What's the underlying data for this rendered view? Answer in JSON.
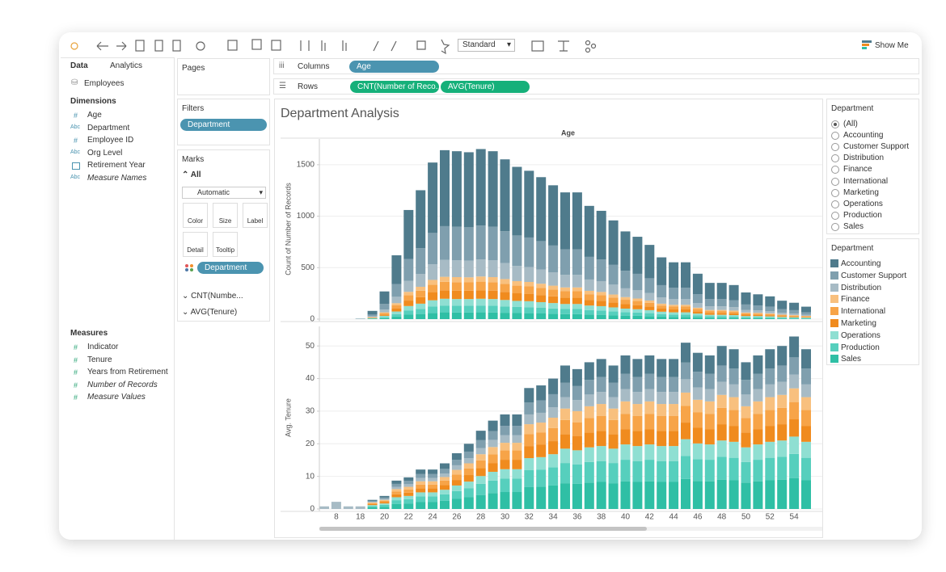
{
  "toolbar": {
    "mark_size": "Standard",
    "show_me": "Show Me"
  },
  "data_pane": {
    "tabs": [
      "Data",
      "Analytics"
    ],
    "data_source": "Employees",
    "dimensions_title": "Dimensions",
    "dimensions": [
      {
        "icon": "#",
        "name": "Age"
      },
      {
        "icon": "Abc",
        "name": "Department"
      },
      {
        "icon": "#",
        "name": "Employee ID"
      },
      {
        "icon": "Abc",
        "name": "Org Level"
      },
      {
        "name": "Retirement Year"
      },
      {
        "icon": "Abc",
        "name": "Measure Names",
        "italic": true
      }
    ],
    "measures_title": "Measures",
    "measures": [
      {
        "icon": "#",
        "name": "Indicator"
      },
      {
        "icon": "#",
        "name": "Tenure"
      },
      {
        "icon": "#",
        "name": "Years from Retirement"
      },
      {
        "icon": "#",
        "name": "Number of Records",
        "italic": true
      },
      {
        "icon": "#",
        "name": "Measure Values",
        "italic": true
      }
    ]
  },
  "shelves": {
    "pages": "Pages",
    "filters": "Filters",
    "filter_pills": [
      "Department"
    ],
    "marks": "Marks",
    "marks_all": "All",
    "mark_type": "Automatic",
    "mark_buttons": [
      "Color",
      "Size",
      "Label",
      "Detail",
      "Tooltip"
    ],
    "color_pill": "Department",
    "mark_measures": [
      "CNT(Numbe...",
      "AVG(Tenure)"
    ],
    "columns": "Columns",
    "column_pills": [
      "Age"
    ],
    "rows": "Rows",
    "row_pills": [
      "CNT(Number of Reco..",
      "AVG(Tenure)"
    ]
  },
  "filter_card": {
    "title": "Department",
    "options": [
      "(All)",
      "Accounting",
      "Customer Support",
      "Distribution",
      "Finance",
      "International",
      "Marketing",
      "Operations",
      "Production",
      "Sales"
    ]
  },
  "chart_data": [
    {
      "type": "bar",
      "stacked": true,
      "title": "Department Analysis",
      "x_label": "Age",
      "y_label": "Count of Number of Records",
      "legend_title": "Department",
      "ylim": [
        0,
        1750
      ],
      "yticks": [
        0,
        500,
        1000,
        1500
      ],
      "grid": true,
      "series": [
        {
          "name": "Accounting",
          "color": "#4f7b8c",
          "values": [
            0,
            0,
            0,
            2,
            36,
            122,
            279,
            477,
            563,
            684,
            738,
            734,
            729,
            743,
            734,
            698,
            666,
            648,
            621,
            585,
            554,
            554,
            495,
            473,
            432,
            383,
            360,
            324,
            270,
            248,
            248,
            198,
            158,
            158,
            149,
            117,
            108,
            99,
            81,
            72,
            54
          ]
        },
        {
          "name": "Customer Support",
          "color": "#7f9fae",
          "values": [
            0,
            0,
            0,
            1,
            16,
            54,
            124,
            212,
            250,
            304,
            328,
            326,
            324,
            330,
            326,
            310,
            296,
            288,
            276,
            260,
            246,
            246,
            220,
            210,
            192,
            170,
            160,
            144,
            120,
            110,
            110,
            88,
            70,
            70,
            66,
            52,
            48,
            44,
            36,
            32,
            24
          ]
        },
        {
          "name": "Distribution",
          "color": "#a7bbc5",
          "values": [
            0,
            0,
            0,
            1,
            8,
            27,
            62,
            106,
            125,
            152,
            164,
            163,
            162,
            165,
            163,
            155,
            148,
            144,
            138,
            130,
            123,
            123,
            110,
            105,
            96,
            85,
            80,
            72,
            60,
            55,
            55,
            44,
            35,
            35,
            33,
            26,
            24,
            22,
            18,
            16,
            12
          ]
        },
        {
          "name": "Finance",
          "color": "#f8c07e",
          "values": [
            0,
            0,
            0,
            0,
            2,
            8,
            19,
            32,
            38,
            46,
            49,
            49,
            49,
            50,
            49,
            47,
            44,
            43,
            41,
            39,
            37,
            37,
            33,
            32,
            29,
            26,
            24,
            22,
            18,
            17,
            17,
            13,
            11,
            11,
            10,
            8,
            7,
            7,
            5,
            5,
            4
          ]
        },
        {
          "name": "International",
          "color": "#f7a448",
          "values": [
            0,
            0,
            0,
            0,
            4,
            13,
            31,
            53,
            63,
            76,
            82,
            82,
            81,
            83,
            82,
            78,
            74,
            72,
            69,
            65,
            62,
            62,
            55,
            53,
            48,
            43,
            40,
            36,
            30,
            28,
            28,
            22,
            18,
            18,
            17,
            13,
            12,
            11,
            9,
            8,
            6
          ]
        },
        {
          "name": "Marketing",
          "color": "#f08b1e",
          "values": [
            0,
            0,
            0,
            0,
            4,
            13,
            31,
            53,
            63,
            76,
            82,
            82,
            81,
            83,
            82,
            78,
            74,
            72,
            69,
            65,
            62,
            62,
            55,
            53,
            48,
            43,
            40,
            36,
            30,
            28,
            28,
            22,
            18,
            18,
            17,
            13,
            12,
            11,
            9,
            8,
            6
          ]
        },
        {
          "name": "Operations",
          "color": "#8fdfd2",
          "values": [
            0,
            0,
            0,
            0,
            3,
            11,
            25,
            42,
            50,
            61,
            66,
            65,
            65,
            66,
            65,
            62,
            59,
            58,
            55,
            52,
            49,
            49,
            44,
            42,
            38,
            34,
            32,
            29,
            24,
            22,
            22,
            18,
            14,
            14,
            13,
            10,
            10,
            9,
            7,
            6,
            5
          ]
        },
        {
          "name": "Production",
          "color": "#56cfbd",
          "values": [
            0,
            0,
            0,
            0,
            3,
            11,
            25,
            42,
            50,
            61,
            66,
            65,
            65,
            66,
            65,
            62,
            59,
            58,
            55,
            52,
            49,
            49,
            44,
            42,
            38,
            34,
            32,
            29,
            24,
            22,
            22,
            18,
            14,
            14,
            13,
            10,
            10,
            9,
            7,
            6,
            5
          ]
        },
        {
          "name": "Sales",
          "color": "#2fbfa5",
          "values": [
            0,
            0,
            0,
            1,
            4,
            10,
            24,
            43,
            50,
            61,
            66,
            65,
            65,
            66,
            65,
            62,
            59,
            58,
            55,
            52,
            49,
            49,
            44,
            42,
            38,
            34,
            32,
            29,
            24,
            22,
            22,
            18,
            14,
            14,
            13,
            10,
            10,
            9,
            7,
            6,
            5
          ]
        }
      ]
    },
    {
      "type": "bar",
      "stacked": true,
      "y_label": "Avg. Tenure",
      "ylim": [
        0,
        56
      ],
      "yticks": [
        0,
        10,
        20,
        30,
        40,
        50
      ],
      "grid": true,
      "categories": [
        null,
        "8",
        null,
        "18",
        null,
        "20",
        null,
        "22",
        null,
        "24",
        null,
        "26",
        null,
        "28",
        null,
        "30",
        null,
        "32",
        null,
        "34",
        null,
        "36",
        null,
        "38",
        null,
        "40",
        null,
        "42",
        null,
        "44",
        null,
        "46",
        null,
        "48",
        null,
        "50",
        null,
        "52",
        null,
        "54",
        null
      ],
      "series": [
        {
          "color": "#4f7b8c",
          "values": [
            0,
            0,
            0,
            0,
            0.3,
            0.5,
            1,
            1.1,
            1.4,
            1.4,
            1.7,
            2,
            2.4,
            2.9,
            3.2,
            3.5,
            3.5,
            4.4,
            4.6,
            4.8,
            5.3,
            5.2,
            5.4,
            5.5,
            5.3,
            5.6,
            5.5,
            5.6,
            5.5,
            5.5,
            6.1,
            5.8,
            5.6,
            6,
            5.9,
            5.4,
            5.6,
            5.9,
            6,
            6.4,
            5.9
          ]
        },
        {
          "color": "#7f9fae",
          "values": [
            0,
            0,
            0,
            0,
            0.3,
            0.4,
            0.9,
            1,
            1.2,
            1.2,
            1.4,
            1.7,
            2,
            2.4,
            2.7,
            2.9,
            2.9,
            3.7,
            3.8,
            4,
            4.4,
            4.3,
            4.5,
            4.6,
            4.4,
            4.7,
            4.6,
            4.7,
            4.6,
            4.6,
            5.1,
            4.8,
            4.7,
            5,
            4.9,
            4.5,
            4.7,
            4.9,
            5,
            5.3,
            4.9
          ]
        },
        {
          "color": "#a7bbc5",
          "values": [
            0.8,
            2.2,
            0.8,
            0.8,
            0.2,
            0.3,
            0.7,
            0.8,
            1,
            1,
            1.1,
            1.4,
            1.6,
            1.9,
            2.2,
            2.3,
            2.3,
            3,
            3,
            3.2,
            3.5,
            3.4,
            3.6,
            3.7,
            3.5,
            3.8,
            3.7,
            3.8,
            3.7,
            3.7,
            4.1,
            3.8,
            3.8,
            4,
            3.9,
            3.6,
            3.8,
            3.9,
            4,
            4.2,
            3.9
          ]
        },
        {
          "color": "#f8c07e",
          "values": [
            0,
            0,
            0,
            0,
            0.2,
            0.3,
            0.7,
            0.8,
            1,
            1,
            1.1,
            1.4,
            1.6,
            1.9,
            2.2,
            2.3,
            2.3,
            3,
            3,
            3.2,
            3.5,
            3.4,
            3.6,
            3.7,
            3.5,
            3.8,
            3.7,
            3.8,
            3.7,
            3.7,
            4.1,
            3.8,
            3.8,
            4,
            3.9,
            3.6,
            3.8,
            3.9,
            4,
            4.2,
            3.9
          ]
        },
        {
          "color": "#f7a448",
          "values": [
            0,
            0,
            0,
            0,
            0.3,
            0.4,
            0.9,
            1,
            1.2,
            1.2,
            1.4,
            1.7,
            2,
            2.4,
            2.7,
            2.9,
            2.9,
            3.7,
            3.8,
            4,
            4.4,
            4.3,
            4.5,
            4.6,
            4.4,
            4.7,
            4.6,
            4.7,
            4.6,
            4.6,
            5.1,
            4.8,
            4.7,
            5,
            4.9,
            4.5,
            4.7,
            4.9,
            5,
            5.3,
            4.9
          ]
        },
        {
          "color": "#f08b1e",
          "values": [
            0,
            0,
            0,
            0,
            0.3,
            0.4,
            0.9,
            1,
            1.2,
            1.2,
            1.4,
            1.7,
            2,
            2.4,
            2.7,
            2.9,
            2.9,
            3.7,
            3.8,
            4,
            4.4,
            4.3,
            4.5,
            4.6,
            4.4,
            4.7,
            4.6,
            4.7,
            4.6,
            4.6,
            5.1,
            4.8,
            4.7,
            5,
            4.9,
            4.5,
            4.7,
            4.9,
            5,
            5.3,
            4.9
          ]
        },
        {
          "color": "#8fdfd2",
          "values": [
            0,
            0,
            0,
            0,
            0.3,
            0.4,
            0.9,
            1,
            1.2,
            1.2,
            1.4,
            1.7,
            2,
            2.4,
            2.7,
            2.9,
            2.9,
            3.7,
            3.8,
            4,
            4.4,
            4.3,
            4.5,
            4.6,
            4.4,
            4.7,
            4.6,
            4.7,
            4.6,
            4.6,
            5.1,
            4.8,
            4.7,
            5,
            4.9,
            4.5,
            4.7,
            4.9,
            5,
            5.3,
            4.9
          ]
        },
        {
          "color": "#56cfbd",
          "values": [
            0,
            0,
            0,
            0,
            0.4,
            0.6,
            1.2,
            1.3,
            1.7,
            1.7,
            2,
            2.4,
            2.8,
            3.4,
            3.8,
            4.1,
            4.1,
            5.2,
            5.3,
            5.6,
            6.2,
            6,
            6.3,
            6.4,
            6.2,
            6.6,
            6.4,
            6.6,
            6.4,
            6.4,
            7.1,
            6.7,
            6.6,
            7,
            6.9,
            6.3,
            6.6,
            6.9,
            7,
            7.4,
            6.9
          ]
        },
        {
          "color": "#2fbfa5",
          "values": [
            0,
            0,
            0,
            0,
            0.5,
            0.7,
            1.5,
            1.7,
            2.2,
            2.2,
            2.5,
            3.1,
            3.6,
            4.3,
            4.9,
            5.2,
            5.2,
            6.7,
            6.8,
            7.2,
            7.9,
            7.7,
            8.1,
            8.3,
            7.9,
            8.5,
            8.3,
            8.5,
            8.3,
            8.3,
            9.2,
            8.6,
            8.5,
            9,
            8.8,
            8.1,
            8.5,
            8.8,
            9,
            9.5,
            8.8
          ]
        }
      ]
    }
  ]
}
